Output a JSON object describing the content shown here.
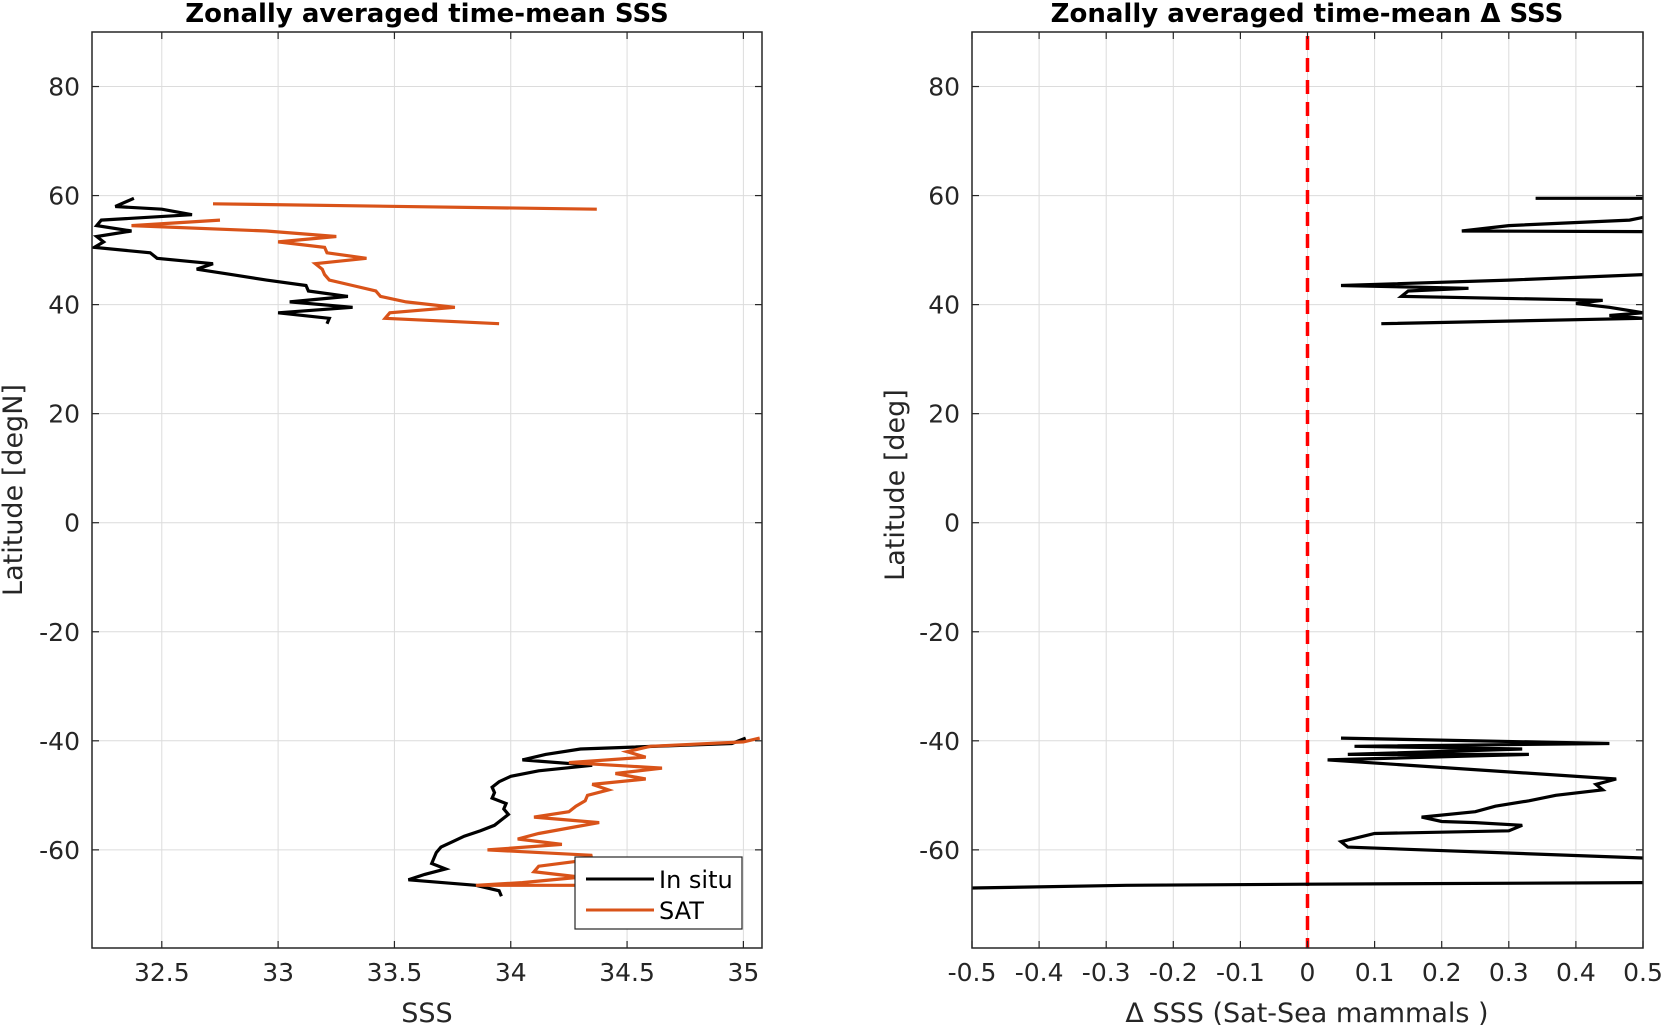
{
  "chart_data": [
    {
      "type": "line",
      "title": "Zonally averaged time-mean SSS",
      "xlabel": "SSS",
      "ylabel": "Latitude [degN]",
      "xlim": [
        32.2,
        35.08
      ],
      "ylim": [
        -78,
        90
      ],
      "xticks": [
        32.5,
        33,
        33.5,
        34,
        34.5,
        35
      ],
      "xtick_labels": [
        "32.5",
        "33",
        "33.5",
        "34",
        "34.5",
        "35"
      ],
      "yticks": [
        -60,
        -40,
        -20,
        0,
        20,
        40,
        60,
        80
      ],
      "ytick_labels": [
        "-60",
        "-40",
        "-20",
        "0",
        "20",
        "40",
        "60",
        "80"
      ],
      "grid": true,
      "legend": "bottom-right",
      "series": [
        {
          "name": "In situ",
          "color": "#000000",
          "points": [
            [
              32.38,
              59.5
            ],
            [
              32.3,
              58
            ],
            [
              32.5,
              57.5
            ],
            [
              32.63,
              56.5
            ],
            [
              32.24,
              55.5
            ],
            [
              32.22,
              54.5
            ],
            [
              32.37,
              53.5
            ],
            [
              32.22,
              52.5
            ],
            [
              32.25,
              51.5
            ],
            [
              32.21,
              50.5
            ],
            [
              32.45,
              49.5
            ],
            [
              32.48,
              48.5
            ],
            [
              32.72,
              47.5
            ],
            [
              32.65,
              46.5
            ],
            [
              32.8,
              45.5
            ],
            [
              32.95,
              44.5
            ],
            [
              33.12,
              43.5
            ],
            [
              33.13,
              42.5
            ],
            [
              33.3,
              41.5
            ],
            [
              33.05,
              40.5
            ],
            [
              33.32,
              39.5
            ],
            [
              33.0,
              38.5
            ],
            [
              33.22,
              37.5
            ],
            [
              33.21,
              36.5
            ]
          ]
        },
        {
          "name": "In situ",
          "color": "#000000",
          "points": [
            [
              35.01,
              -39.5
            ],
            [
              34.95,
              -40.5
            ],
            [
              34.3,
              -41.5
            ],
            [
              34.15,
              -42.5
            ],
            [
              34.05,
              -43.5
            ],
            [
              34.35,
              -44.5
            ],
            [
              34.12,
              -45.5
            ],
            [
              34.0,
              -46.5
            ],
            [
              33.95,
              -47.5
            ],
            [
              33.92,
              -48.5
            ],
            [
              33.93,
              -49.5
            ],
            [
              33.92,
              -50.5
            ],
            [
              33.98,
              -51.5
            ],
            [
              33.97,
              -52.5
            ],
            [
              33.99,
              -53.5
            ],
            [
              33.96,
              -54.5
            ],
            [
              33.93,
              -55.5
            ],
            [
              33.87,
              -56.5
            ],
            [
              33.8,
              -57.5
            ],
            [
              33.75,
              -58.5
            ],
            [
              33.7,
              -59.5
            ],
            [
              33.68,
              -60.5
            ],
            [
              33.67,
              -61.5
            ],
            [
              33.66,
              -62.5
            ],
            [
              33.72,
              -63.5
            ],
            [
              33.63,
              -64.5
            ],
            [
              33.56,
              -65.5
            ],
            [
              33.85,
              -66.5
            ],
            [
              33.95,
              -67.5
            ],
            [
              33.96,
              -68.5
            ]
          ]
        },
        {
          "name": "SAT",
          "color": "#D95319",
          "points": [
            [
              34.37,
              57.5
            ],
            [
              32.72,
              58.5
            ]
          ]
        },
        {
          "name": "SAT",
          "color": "#D95319",
          "points": [
            [
              32.75,
              55.5
            ],
            [
              32.37,
              54.5
            ],
            [
              32.95,
              53.5
            ],
            [
              33.25,
              52.5
            ],
            [
              33.0,
              51.5
            ],
            [
              33.2,
              50.5
            ],
            [
              33.21,
              49.5
            ],
            [
              33.38,
              48.5
            ],
            [
              33.16,
              47.5
            ],
            [
              33.19,
              46.5
            ],
            [
              33.2,
              45.5
            ],
            [
              33.22,
              44.5
            ],
            [
              33.32,
              43.5
            ],
            [
              33.42,
              42.5
            ],
            [
              33.44,
              41.5
            ],
            [
              33.55,
              40.5
            ],
            [
              33.76,
              39.5
            ],
            [
              33.48,
              38.5
            ],
            [
              33.46,
              37.5
            ],
            [
              33.95,
              36.5
            ]
          ]
        },
        {
          "name": "SAT",
          "color": "#D95319",
          "points": [
            [
              35.07,
              -39.5
            ],
            [
              35.0,
              -40.2
            ],
            [
              34.6,
              -41.0
            ],
            [
              34.5,
              -42.0
            ],
            [
              34.58,
              -43.0
            ],
            [
              34.25,
              -44.0
            ],
            [
              34.65,
              -45.0
            ],
            [
              34.45,
              -46.0
            ],
            [
              34.58,
              -47.0
            ],
            [
              34.35,
              -48.0
            ],
            [
              34.42,
              -49.0
            ],
            [
              34.33,
              -50.0
            ],
            [
              34.32,
              -51.0
            ],
            [
              34.28,
              -52.0
            ],
            [
              34.25,
              -53.0
            ],
            [
              34.1,
              -54.0
            ],
            [
              34.38,
              -55.0
            ],
            [
              34.25,
              -56.0
            ],
            [
              34.12,
              -57.0
            ],
            [
              34.03,
              -58.0
            ],
            [
              34.22,
              -59.0
            ],
            [
              33.9,
              -60.0
            ],
            [
              34.35,
              -61.0
            ],
            [
              34.3,
              -62.0
            ],
            [
              34.12,
              -63.0
            ],
            [
              34.1,
              -64.0
            ],
            [
              34.3,
              -65.0
            ],
            [
              34.05,
              -66.0
            ],
            [
              33.85,
              -66.5
            ],
            [
              34.3,
              -66.5
            ]
          ]
        }
      ]
    },
    {
      "type": "line",
      "title": "Zonally averaged time-mean Δ SSS",
      "xlabel": "Δ SSS (Sat-Sea mammals )",
      "ylabel": "Latitude [deg]",
      "xlim": [
        -0.5,
        0.5
      ],
      "ylim": [
        -78,
        90
      ],
      "xticks": [
        -0.5,
        -0.4,
        -0.3,
        -0.2,
        -0.1,
        0,
        0.1,
        0.2,
        0.3,
        0.4,
        0.5
      ],
      "xtick_labels": [
        "-0.5",
        "-0.4",
        "-0.3",
        "-0.2",
        "-0.1",
        "0",
        "0.1",
        "0.2",
        "0.3",
        "0.4",
        "0.5"
      ],
      "yticks": [
        -60,
        -40,
        -20,
        0,
        20,
        40,
        60,
        80
      ],
      "ytick_labels": [
        "-60",
        "-40",
        "-20",
        "0",
        "20",
        "40",
        "60",
        "80"
      ],
      "grid": true,
      "reference_line": {
        "x": 0,
        "color": "#FF0000",
        "style": "dashed"
      },
      "series": [
        {
          "color": "#000000",
          "points": [
            [
              0.34,
              59.5
            ],
            [
              0.5,
              59.5
            ]
          ]
        },
        {
          "color": "#000000",
          "points": [
            [
              0.5,
              56.0
            ],
            [
              0.48,
              55.5
            ],
            [
              0.3,
              54.5
            ],
            [
              0.23,
              53.5
            ],
            [
              0.5,
              53.4
            ]
          ]
        },
        {
          "color": "#000000",
          "points": [
            [
              0.5,
              45.5
            ],
            [
              0.3,
              44.5
            ],
            [
              0.05,
              43.5
            ],
            [
              0.24,
              43.0
            ],
            [
              0.15,
              42.5
            ],
            [
              0.14,
              41.5
            ],
            [
              0.44,
              40.8
            ],
            [
              0.4,
              40.2
            ],
            [
              0.45,
              39.5
            ],
            [
              0.5,
              38.5
            ],
            [
              0.45,
              38.0
            ],
            [
              0.5,
              37.5
            ],
            [
              0.11,
              36.5
            ]
          ]
        },
        {
          "color": "#000000",
          "points": [
            [
              0.05,
              -39.5
            ],
            [
              0.45,
              -40.5
            ],
            [
              0.07,
              -41.0
            ],
            [
              0.32,
              -41.5
            ],
            [
              0.06,
              -42.5
            ],
            [
              0.33,
              -42.5
            ],
            [
              0.03,
              -43.5
            ],
            [
              0.46,
              -47.0
            ],
            [
              0.43,
              -48.0
            ],
            [
              0.44,
              -49.0
            ],
            [
              0.37,
              -50.0
            ],
            [
              0.33,
              -51.0
            ],
            [
              0.28,
              -52.0
            ],
            [
              0.25,
              -53.0
            ],
            [
              0.17,
              -54.0
            ],
            [
              0.2,
              -54.8
            ],
            [
              0.25,
              -55.0
            ],
            [
              0.32,
              -55.5
            ],
            [
              0.3,
              -56.5
            ],
            [
              0.1,
              -57.0
            ],
            [
              0.05,
              -58.5
            ],
            [
              0.06,
              -59.5
            ],
            [
              0.5,
              -61.5
            ]
          ]
        },
        {
          "color": "#000000",
          "points": [
            [
              0.5,
              -66.0
            ],
            [
              0.0,
              -66.3
            ],
            [
              -0.27,
              -66.5
            ],
            [
              -0.5,
              -67.0
            ]
          ]
        }
      ]
    }
  ]
}
